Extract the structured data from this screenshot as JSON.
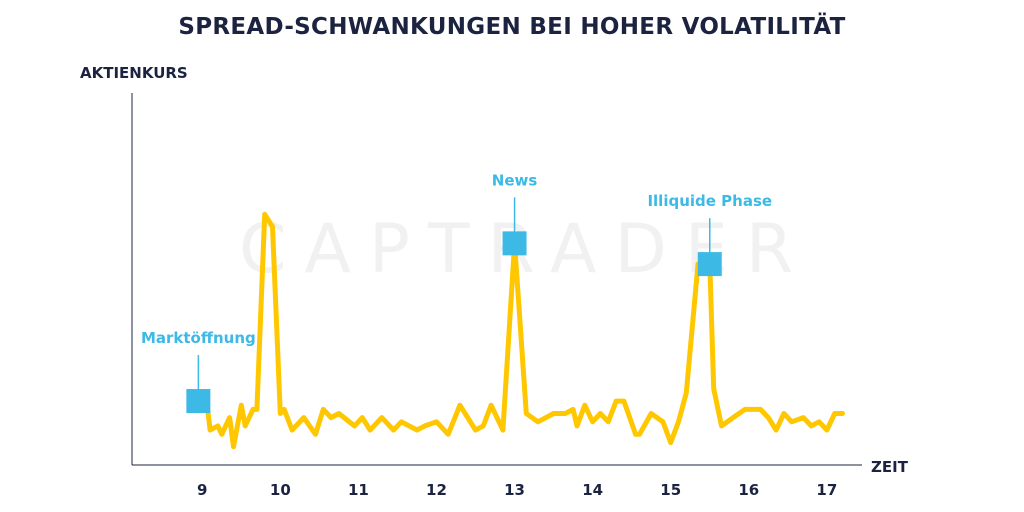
{
  "colors": {
    "line": "#ffc700",
    "marker": "#3db9e6",
    "axis": "#1c2340",
    "text": "#1c2340",
    "watermark": "#f1f1f1"
  },
  "watermark": "CAPTRADER",
  "chart_data": {
    "type": "line",
    "title": "SPREAD-SCHWANKUNGEN BEI HOHER VOLATILITÄT",
    "xlabel": "ZEIT",
    "ylabel": "AKTIENKURS",
    "x_ticks": [
      9,
      10,
      11,
      12,
      13,
      14,
      15,
      16,
      17
    ],
    "xlim": [
      8.1,
      17.45
    ],
    "ylim": [
      0,
      100
    ],
    "grid": false,
    "legend": "none",
    "series": [
      {
        "x": [
          8.95,
          9.05,
          9.1,
          9.2,
          9.25,
          9.35,
          9.4,
          9.5,
          9.55,
          9.65,
          9.7,
          9.8,
          9.9,
          10.0,
          10.05,
          10.15,
          10.3,
          10.45,
          10.55,
          10.65,
          10.75,
          10.95,
          11.05,
          11.15,
          11.3,
          11.45,
          11.55,
          11.75,
          11.85,
          12.0,
          12.15,
          12.3,
          12.4,
          12.5,
          12.6,
          12.7,
          12.85,
          13.0,
          13.15,
          13.3,
          13.5,
          13.65,
          13.75,
          13.8,
          13.9,
          14.0,
          14.1,
          14.2,
          14.3,
          14.4,
          14.55,
          14.6,
          14.75,
          14.9,
          15.0,
          15.1,
          15.2,
          15.35,
          15.5,
          15.55,
          15.65,
          15.8,
          15.95,
          16.05,
          16.15,
          16.25,
          16.35,
          16.45,
          16.55,
          16.7,
          16.8,
          16.9,
          17.0,
          17.1,
          17.2
        ],
        "y": [
          13,
          14,
          6,
          7,
          5,
          9,
          2,
          12,
          7,
          11,
          11,
          58,
          55,
          10,
          11,
          6,
          9,
          5,
          11,
          9,
          10,
          7,
          9,
          6,
          9,
          6,
          8,
          6,
          7,
          8,
          5,
          12,
          9,
          6,
          7,
          12,
          6,
          51,
          10,
          8,
          10,
          10,
          11,
          7,
          12,
          8,
          10,
          8,
          13,
          13,
          5,
          5,
          10,
          8,
          3,
          8,
          15,
          46,
          46,
          16,
          7,
          9,
          11,
          11,
          11,
          9,
          6,
          10,
          8,
          9,
          7,
          8,
          6,
          10,
          10
        ]
      }
    ],
    "annotations": [
      {
        "label": "Marktöffnung",
        "x": 8.95,
        "y": 13
      },
      {
        "label": "News",
        "x": 13.0,
        "y": 51
      },
      {
        "label": "Illiquide Phase",
        "x": 15.5,
        "y": 46
      }
    ]
  }
}
